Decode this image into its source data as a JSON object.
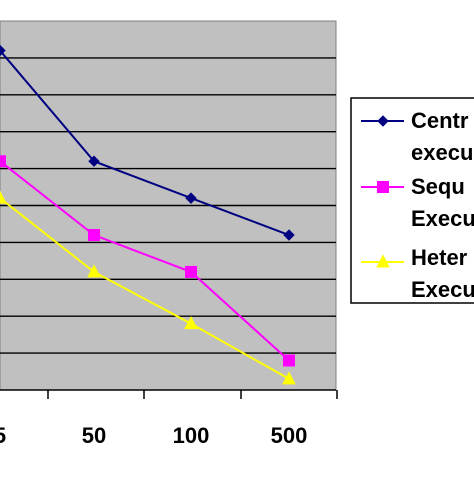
{
  "chart_data": {
    "type": "line",
    "title": "",
    "xlabel": "",
    "ylabel": "",
    "categories": [
      "5",
      "50",
      "100",
      "500"
    ],
    "ylim": [
      0,
      10
    ],
    "y_gridlines": 10,
    "grid": true,
    "plot_background": "#c0c0c0",
    "legend_position": "right",
    "series": [
      {
        "name_lines": [
          "Centr",
          "execu"
        ],
        "color": "#000080",
        "marker": "diamond",
        "values": [
          9.2,
          6.2,
          5.2,
          4.2
        ]
      },
      {
        "name_lines": [
          "Sequ",
          "Execu"
        ],
        "color": "#ff00ff",
        "marker": "square",
        "values": [
          6.2,
          4.2,
          3.2,
          0.8
        ]
      },
      {
        "name_lines": [
          "Heter",
          "Execu"
        ],
        "color": "#ffff00",
        "marker": "triangle",
        "values": [
          5.2,
          3.2,
          1.8,
          0.3
        ]
      }
    ]
  }
}
